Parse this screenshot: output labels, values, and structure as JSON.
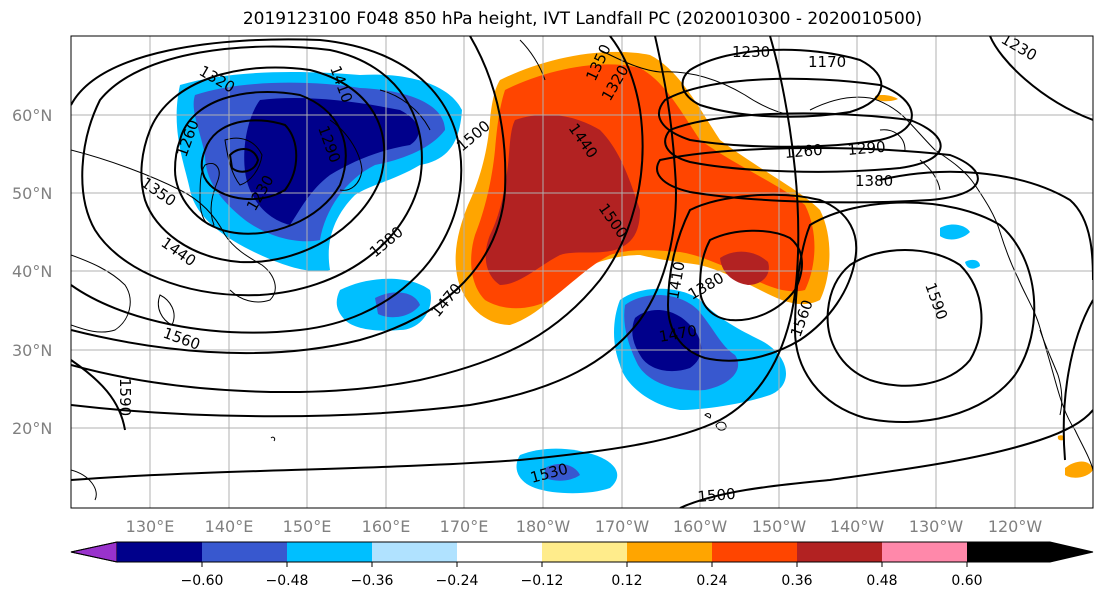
{
  "title": "2019123100 F048 850 hPa height, IVT Landfall PC (2020010300 - 2020010500)",
  "lat_labels": [
    "60°N",
    "50°N",
    "40°N",
    "30°N",
    "20°N"
  ],
  "lon_labels": [
    "130°E",
    "140°E",
    "150°E",
    "160°E",
    "170°E",
    "180°W",
    "170°W",
    "160°W",
    "150°W",
    "140°W",
    "130°W",
    "120°W"
  ],
  "colorbar": {
    "ticks": [
      "−0.60",
      "−0.48",
      "−0.36",
      "−0.24",
      "−0.12",
      "0.12",
      "0.24",
      "0.36",
      "0.48",
      "0.60"
    ],
    "colors": [
      "#9932cc",
      "#00008b",
      "#3858cf",
      "#00bfff",
      "#b0e2ff",
      "#ffffff",
      "#ffec8b",
      "#ffa500",
      "#ff4500",
      "#b22222",
      "#ff88aa"
    ]
  },
  "contour_labels": [
    "1320",
    "1410",
    "1260",
    "1290",
    "1230",
    "1350",
    "1440",
    "1380",
    "1500",
    "1470",
    "1560",
    "1590",
    "1440",
    "1320",
    "1350",
    "1500",
    "1230",
    "1170",
    "1230",
    "1260",
    "1290",
    "1380",
    "1410",
    "1380",
    "1470",
    "1560",
    "1590",
    "1530",
    "1500"
  ]
}
